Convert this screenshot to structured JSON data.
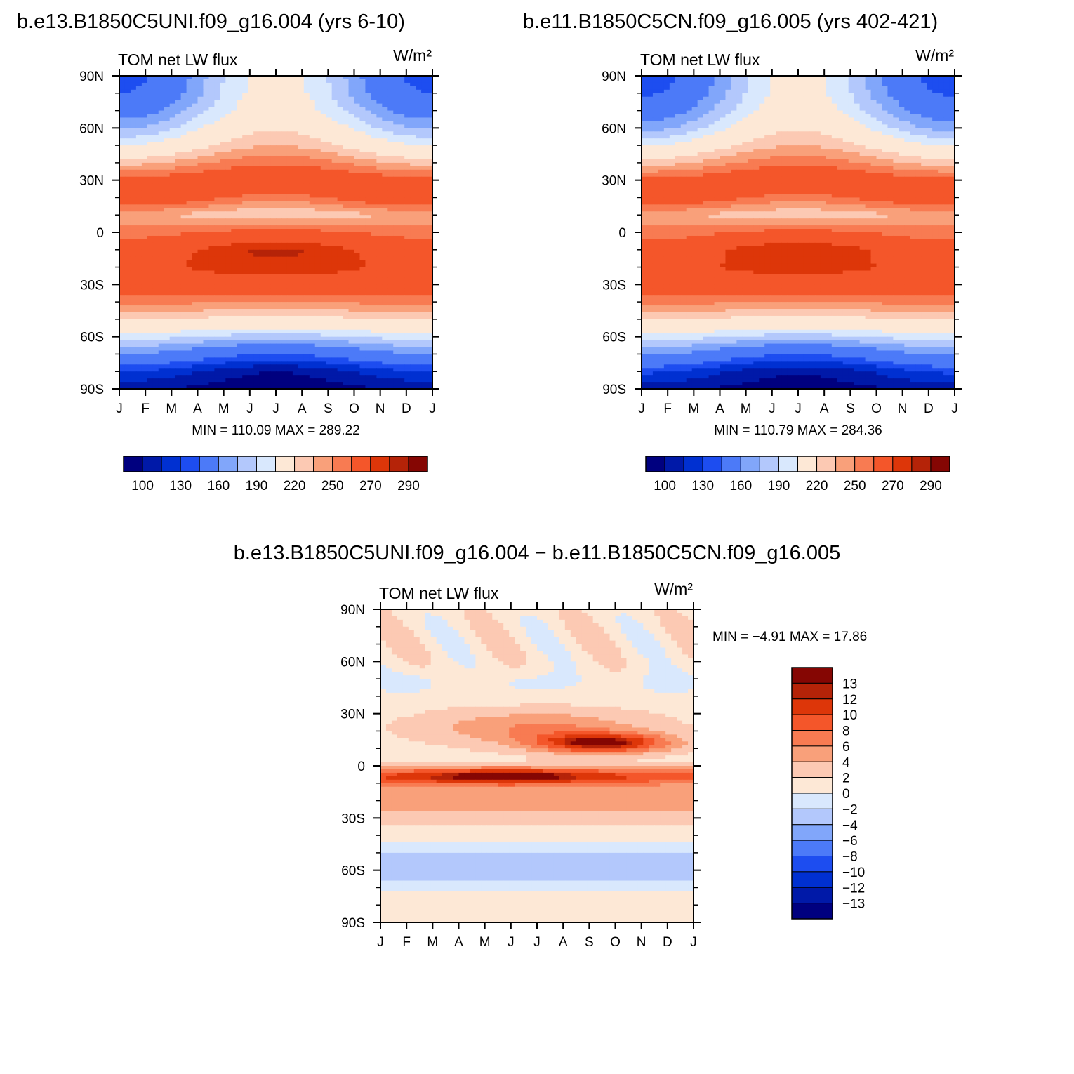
{
  "chart_data": [
    {
      "type": "heatmap",
      "title": "b.e13.B1850C5UNI.f09_g16.004 (yrs 6-10)",
      "left_label": "TOM net LW flux",
      "units": "W/m²",
      "x_ticks": [
        "J",
        "F",
        "M",
        "A",
        "M",
        "J",
        "J",
        "A",
        "S",
        "O",
        "N",
        "D",
        "J"
      ],
      "y_ticks": [
        "90N",
        "60N",
        "30N",
        "0",
        "30S",
        "60S",
        "90S"
      ],
      "x_range": [
        0,
        12
      ],
      "y_range": [
        -90,
        90
      ],
      "min_max": "MIN = 110.09 MAX = 289.22",
      "min": 110.09,
      "max": 289.22,
      "colorbar_labels": [
        "100",
        "130",
        "160",
        "190",
        "220",
        "250",
        "270",
        "290"
      ],
      "levels": [
        100,
        110,
        120,
        130,
        140,
        150,
        160,
        170,
        180,
        190,
        200,
        210,
        220,
        230,
        240,
        250,
        260,
        270,
        280,
        290,
        300
      ],
      "profile": {
        "lat": [
          -90,
          -80,
          -70,
          -60,
          -50,
          -40,
          -30,
          -20,
          -10,
          0,
          10,
          20,
          30,
          40,
          50,
          60,
          70,
          80,
          90
        ],
        "jan": [
          122,
          140,
          170,
          195,
          222,
          244,
          260,
          266,
          258,
          245,
          232,
          268,
          255,
          226,
          200,
          178,
          162,
          150,
          144
        ],
        "jul": [
          113,
          120,
          150,
          185,
          215,
          240,
          262,
          278,
          282,
          255,
          220,
          246,
          268,
          248,
          230,
          218,
          208,
          205,
          205
        ]
      }
    },
    {
      "type": "heatmap",
      "title": "b.e11.B1850C5CN.f09_g16.005 (yrs 402-421)",
      "left_label": "TOM net LW flux",
      "units": "W/m²",
      "x_ticks": [
        "J",
        "F",
        "M",
        "A",
        "M",
        "J",
        "J",
        "A",
        "S",
        "O",
        "N",
        "D",
        "J"
      ],
      "y_ticks": [
        "90N",
        "60N",
        "30N",
        "0",
        "30S",
        "60S",
        "90S"
      ],
      "x_range": [
        0,
        12
      ],
      "y_range": [
        -90,
        90
      ],
      "min_max": "MIN = 110.79 MAX = 284.36",
      "min": 110.79,
      "max": 284.36,
      "colorbar_labels": [
        "100",
        "130",
        "160",
        "190",
        "220",
        "250",
        "270",
        "290"
      ],
      "levels": [
        100,
        110,
        120,
        130,
        140,
        150,
        160,
        170,
        180,
        190,
        200,
        210,
        220,
        230,
        240,
        250,
        260,
        270,
        280,
        290,
        300
      ],
      "profile": {
        "lat": [
          -90,
          -80,
          -70,
          -60,
          -50,
          -40,
          -30,
          -20,
          -10,
          0,
          10,
          20,
          30,
          40,
          50,
          60,
          70,
          80,
          90
        ],
        "jan": [
          124,
          142,
          172,
          196,
          222,
          244,
          260,
          264,
          256,
          244,
          232,
          266,
          254,
          225,
          199,
          176,
          160,
          148,
          142
        ],
        "jul": [
          114,
          121,
          151,
          186,
          215,
          240,
          262,
          276,
          280,
          254,
          222,
          246,
          266,
          247,
          230,
          218,
          208,
          204,
          204
        ]
      }
    },
    {
      "type": "heatmap",
      "title": "b.e13.B1850C5UNI.f09_g16.004 − b.e11.B1850C5CN.f09_g16.005",
      "left_label": "TOM net LW flux",
      "units": "W/m²",
      "x_ticks": [
        "J",
        "F",
        "M",
        "A",
        "M",
        "J",
        "J",
        "A",
        "S",
        "O",
        "N",
        "D",
        "J"
      ],
      "y_ticks": [
        "90N",
        "60N",
        "30N",
        "0",
        "30S",
        "60S",
        "90S"
      ],
      "x_range": [
        0,
        12
      ],
      "y_range": [
        -90,
        90
      ],
      "min_max": "MIN =   −4.91 MAX =   17.86",
      "min": -4.91,
      "max": 17.86,
      "colorbar_labels": [
        "13",
        "12",
        "10",
        "8",
        "6",
        "4",
        "2",
        "0",
        "−2",
        "−4",
        "−6",
        "−8",
        "−10",
        "−12",
        "−13"
      ]
    }
  ],
  "colors": {
    "main_scale": [
      "#00007f",
      "#0019a8",
      "#0030d1",
      "#1d4df0",
      "#4c7af8",
      "#81a6fa",
      "#b3c8fc",
      "#d9e8fd",
      "#fde8d6",
      "#fcc9b3",
      "#f9a07a",
      "#f87b52",
      "#f4562a",
      "#dd3609",
      "#b52308",
      "#850603"
    ],
    "diff_scale": [
      "#00007f",
      "#0019a8",
      "#0030d1",
      "#1d4df0",
      "#4c7af8",
      "#81a6fa",
      "#b3c8fc",
      "#d9e8fd",
      "#fde8d6",
      "#fcc9b3",
      "#f9a07a",
      "#f87b52",
      "#f4562a",
      "#dd3609",
      "#b52308",
      "#850603"
    ]
  }
}
